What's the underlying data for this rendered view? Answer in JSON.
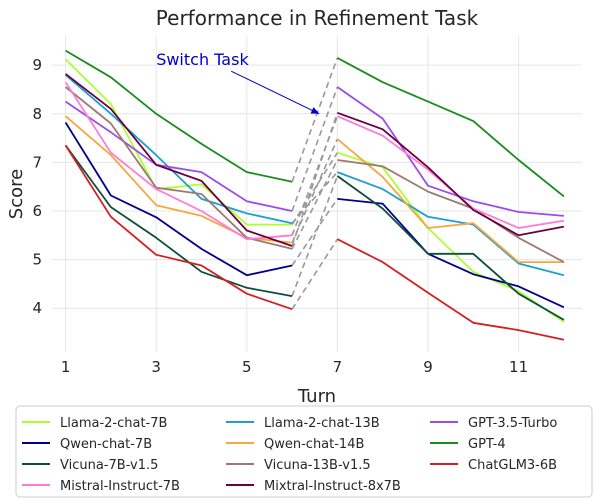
{
  "chart_data": {
    "type": "line",
    "title": "Performance in Refinement Task",
    "xlabel": "Turn",
    "ylabel": "Score",
    "xlim": [
      0.7,
      12.4
    ],
    "ylim": [
      3.1,
      9.6
    ],
    "xticks": [
      1,
      3,
      5,
      7,
      9,
      11
    ],
    "yticks": [
      4,
      5,
      6,
      7,
      8,
      9
    ],
    "grid": true,
    "legend_position": "bottom",
    "annotation": {
      "text": "Switch Task",
      "color": "#0000cc",
      "text_at": [
        3,
        9.0
      ],
      "arrow_to": [
        6.6,
        8.0
      ]
    },
    "switch_connector": {
      "style": "dashed",
      "color": "#999999",
      "from_x": 6,
      "to_x": 7
    },
    "series": [
      {
        "name": "Llama-2-chat-7B",
        "color": "#adff2f",
        "x": [
          1,
          2,
          3,
          4,
          5,
          6,
          7,
          8,
          9,
          10,
          11,
          12
        ],
        "y": [
          9.12,
          8.2,
          6.45,
          6.55,
          5.72,
          5.72,
          7.2,
          6.9,
          5.65,
          4.75,
          4.35,
          3.72
        ]
      },
      {
        "name": "Llama-2-chat-13B",
        "color": "#1aa0d2",
        "x": [
          1,
          2,
          3,
          4,
          5,
          6,
          7,
          8,
          9,
          10,
          11,
          12
        ],
        "y": [
          8.8,
          8.0,
          7.15,
          6.25,
          5.95,
          5.75,
          6.8,
          6.45,
          5.88,
          5.72,
          4.92,
          4.68
        ]
      },
      {
        "name": "GPT-3.5-Turbo",
        "color": "#9b4de8",
        "x": [
          1,
          2,
          3,
          4,
          5,
          6,
          7,
          8,
          9,
          10,
          11,
          12
        ],
        "y": [
          8.25,
          7.62,
          6.95,
          6.8,
          6.2,
          6.0,
          8.55,
          7.9,
          6.52,
          6.2,
          5.98,
          5.9
        ]
      },
      {
        "name": "Qwen-chat-7B",
        "color": "#00008b",
        "x": [
          1,
          2,
          3,
          4,
          5,
          6,
          7,
          8,
          9,
          10,
          11,
          12
        ],
        "y": [
          7.82,
          6.32,
          5.87,
          5.22,
          4.68,
          4.88,
          6.25,
          6.15,
          5.12,
          4.7,
          4.45,
          4.02
        ]
      },
      {
        "name": "Qwen-chat-14B",
        "color": "#f5a742",
        "x": [
          1,
          2,
          3,
          4,
          5,
          6,
          7,
          8,
          9,
          10,
          11,
          12
        ],
        "y": [
          7.95,
          7.15,
          6.12,
          5.9,
          5.45,
          5.35,
          7.48,
          6.7,
          5.65,
          5.75,
          4.95,
          4.95
        ]
      },
      {
        "name": "GPT-4",
        "color": "#1a8c1a",
        "x": [
          1,
          2,
          3,
          4,
          5,
          6,
          7,
          8,
          9,
          10,
          11,
          12
        ],
        "y": [
          9.3,
          8.75,
          8.0,
          7.38,
          6.8,
          6.6,
          9.15,
          8.65,
          8.25,
          7.85,
          7.05,
          6.3
        ]
      },
      {
        "name": "Vicuna-7B-v1.5",
        "color": "#0b4f3c",
        "x": [
          1,
          2,
          3,
          4,
          5,
          6,
          7,
          8,
          9,
          10,
          11,
          12
        ],
        "y": [
          7.35,
          6.08,
          5.45,
          4.75,
          4.42,
          4.25,
          6.72,
          6.05,
          5.12,
          5.12,
          4.3,
          3.76
        ]
      },
      {
        "name": "Vicuna-13B-v1.5",
        "color": "#9c7b70",
        "x": [
          1,
          2,
          3,
          4,
          5,
          6,
          7,
          8,
          9,
          10,
          11,
          12
        ],
        "y": [
          8.55,
          7.8,
          6.48,
          6.35,
          5.45,
          5.22,
          7.05,
          6.92,
          6.4,
          6.05,
          5.45,
          4.95
        ]
      },
      {
        "name": "ChatGLM3-6B",
        "color": "#d42020",
        "x": [
          1,
          2,
          3,
          4,
          5,
          6,
          7,
          8,
          9,
          10,
          11,
          12
        ],
        "y": [
          7.35,
          5.88,
          5.1,
          4.88,
          4.3,
          3.98,
          5.42,
          4.95,
          4.32,
          3.7,
          3.55,
          3.35
        ]
      },
      {
        "name": "Mistral-Instruct-7B",
        "color": "#ff7bd8",
        "x": [
          1,
          2,
          3,
          4,
          5,
          6,
          7,
          8,
          9,
          10,
          11,
          12
        ],
        "y": [
          8.65,
          7.2,
          6.45,
          6.0,
          5.42,
          5.5,
          7.95,
          7.55,
          6.85,
          6.05,
          5.65,
          5.8
        ]
      },
      {
        "name": "Mixtral-Instruct-8x7B",
        "color": "#6b0040",
        "x": [
          1,
          2,
          3,
          4,
          5,
          6,
          7,
          8,
          9,
          10,
          11,
          12
        ],
        "y": [
          8.82,
          8.1,
          6.95,
          6.62,
          5.6,
          5.28,
          8.02,
          7.68,
          6.9,
          6.02,
          5.5,
          5.68
        ]
      }
    ],
    "legend_order": [
      "Llama-2-chat-7B",
      "Llama-2-chat-13B",
      "GPT-3.5-Turbo",
      "Qwen-chat-7B",
      "Qwen-chat-14B",
      "GPT-4",
      "Vicuna-7B-v1.5",
      "Vicuna-13B-v1.5",
      "ChatGLM3-6B",
      "Mistral-Instruct-7B",
      "Mixtral-Instruct-8x7B"
    ]
  }
}
